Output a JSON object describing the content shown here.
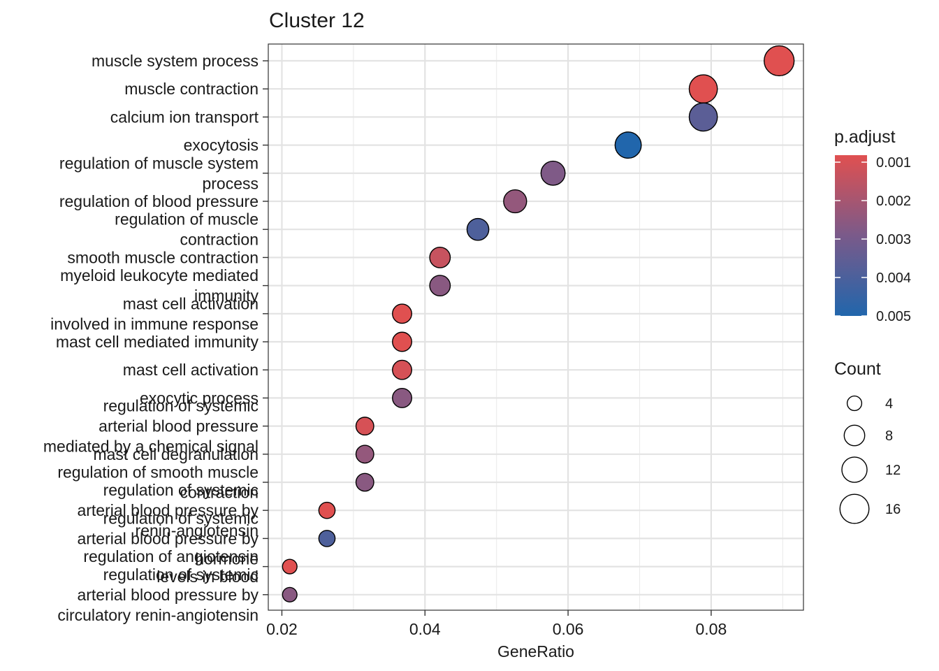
{
  "chart_data": {
    "type": "scatter",
    "title": "Cluster 12",
    "xlabel": "GeneRatio",
    "ylabel": "",
    "xlim": [
      0.0181,
      0.0929
    ],
    "xticks": [
      "0.02",
      "0.04",
      "0.06",
      "0.08"
    ],
    "xtick_values": [
      0.02,
      0.04,
      0.06,
      0.08
    ],
    "grid": true,
    "points": [
      {
        "label": [
          "muscle system process"
        ],
        "x": 0.0895,
        "count": 17,
        "p_adjust": 0.001
      },
      {
        "label": [
          "muscle contraction"
        ],
        "x": 0.0789,
        "count": 15,
        "p_adjust": 0.001
      },
      {
        "label": [
          "calcium ion transport"
        ],
        "x": 0.0789,
        "count": 15,
        "p_adjust": 0.0037
      },
      {
        "label": [
          "exocytosis"
        ],
        "x": 0.0684,
        "count": 13,
        "p_adjust": 0.005
      },
      {
        "label": [
          "regulation of muscle system",
          "process"
        ],
        "x": 0.0579,
        "count": 11,
        "p_adjust": 0.0029
      },
      {
        "label": [
          "regulation of blood pressure"
        ],
        "x": 0.0526,
        "count": 10,
        "p_adjust": 0.0025
      },
      {
        "label": [
          "regulation of muscle",
          "contraction"
        ],
        "x": 0.0474,
        "count": 9,
        "p_adjust": 0.004
      },
      {
        "label": [
          "smooth muscle contraction"
        ],
        "x": 0.0421,
        "count": 8,
        "p_adjust": 0.0015
      },
      {
        "label": [
          "myeloid leukocyte mediated",
          "immunity"
        ],
        "x": 0.0421,
        "count": 8,
        "p_adjust": 0.0027
      },
      {
        "label": [
          "mast cell activation",
          "involved in immune response"
        ],
        "x": 0.0368,
        "count": 7,
        "p_adjust": 0.001
      },
      {
        "label": [
          "mast cell mediated immunity"
        ],
        "x": 0.0368,
        "count": 7,
        "p_adjust": 0.001
      },
      {
        "label": [
          "mast cell activation"
        ],
        "x": 0.0368,
        "count": 7,
        "p_adjust": 0.0012
      },
      {
        "label": [
          "exocytic process"
        ],
        "x": 0.0368,
        "count": 7,
        "p_adjust": 0.0027
      },
      {
        "label": [
          "regulation of systemic",
          "arterial blood pressure",
          "mediated by a chemical signal"
        ],
        "x": 0.0316,
        "count": 6,
        "p_adjust": 0.0012
      },
      {
        "label": [
          "mast cell degranulation"
        ],
        "x": 0.0316,
        "count": 6,
        "p_adjust": 0.0025
      },
      {
        "label": [
          "regulation of smooth muscle",
          "contraction"
        ],
        "x": 0.0316,
        "count": 6,
        "p_adjust": 0.0027
      },
      {
        "label": [
          "regulation of systemic",
          "arterial blood pressure by",
          "renin-angiotensin"
        ],
        "x": 0.0263,
        "count": 5,
        "p_adjust": 0.001
      },
      {
        "label": [
          "regulation of systemic",
          "arterial blood pressure by",
          "hormone"
        ],
        "x": 0.0263,
        "count": 5,
        "p_adjust": 0.004
      },
      {
        "label": [
          "regulation of angiotensin",
          "levels in blood"
        ],
        "x": 0.0211,
        "count": 4,
        "p_adjust": 0.001
      },
      {
        "label": [
          "regulation of systemic",
          "arterial blood pressure by",
          "circulatory renin-angiotensin"
        ],
        "x": 0.0211,
        "count": 4,
        "p_adjust": 0.0027
      }
    ],
    "color_legend": {
      "title": "p.adjust",
      "ticks": [
        "0.001",
        "0.002",
        "0.003",
        "0.004",
        "0.005"
      ],
      "tick_values": [
        0.001,
        0.002,
        0.003,
        0.004,
        0.005
      ],
      "low_color": "#e05050",
      "high_color": "#2166ac",
      "mid_color": "#7a5a8a"
    },
    "size_legend": {
      "title": "Count",
      "labels": [
        "4",
        "8",
        "12",
        "16"
      ],
      "values": [
        4,
        8,
        12,
        16
      ]
    },
    "legend_position": "right"
  }
}
